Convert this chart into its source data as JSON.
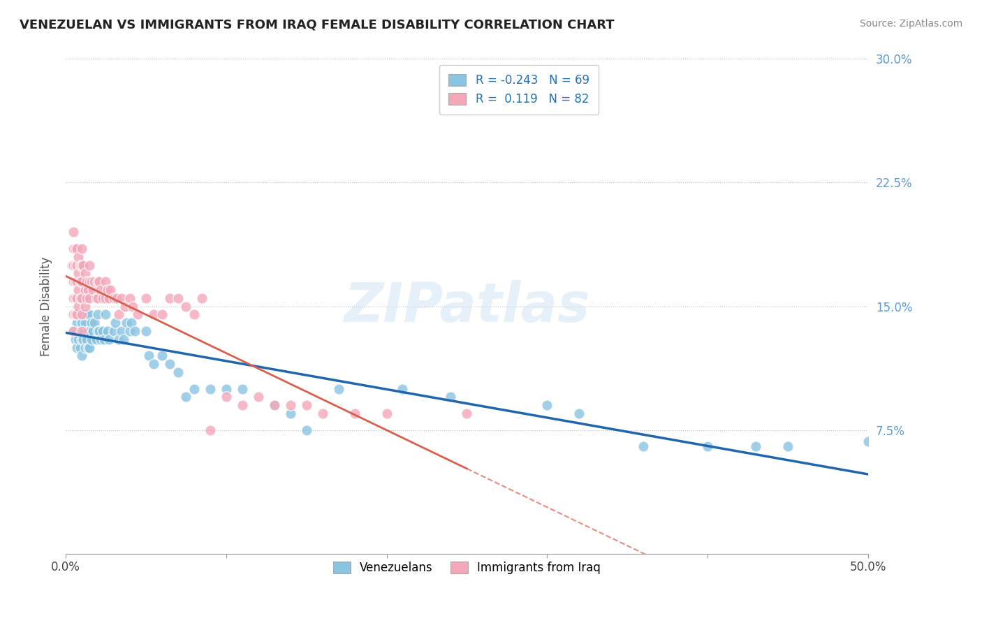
{
  "title": "VENEZUELAN VS IMMIGRANTS FROM IRAQ FEMALE DISABILITY CORRELATION CHART",
  "source": "Source: ZipAtlas.com",
  "ylabel": "Female Disability",
  "xmin": 0.0,
  "xmax": 0.5,
  "ymin": 0.0,
  "ymax": 0.3,
  "legend_labels": [
    "Venezuelans",
    "Immigrants from Iraq"
  ],
  "blue_R": -0.243,
  "blue_N": 69,
  "pink_R": 0.119,
  "pink_N": 82,
  "blue_color": "#89c4e1",
  "pink_color": "#f4a7b9",
  "blue_line_color": "#2166ac",
  "pink_line_color": "#d6604d",
  "watermark": "ZIPatlas",
  "blue_points_x": [
    0.005,
    0.006,
    0.007,
    0.007,
    0.008,
    0.008,
    0.009,
    0.009,
    0.01,
    0.01,
    0.01,
    0.01,
    0.011,
    0.012,
    0.012,
    0.013,
    0.013,
    0.014,
    0.014,
    0.015,
    0.015,
    0.015,
    0.016,
    0.016,
    0.017,
    0.018,
    0.019,
    0.02,
    0.02,
    0.021,
    0.022,
    0.023,
    0.024,
    0.025,
    0.026,
    0.027,
    0.03,
    0.031,
    0.033,
    0.035,
    0.036,
    0.038,
    0.04,
    0.041,
    0.043,
    0.05,
    0.052,
    0.055,
    0.06,
    0.065,
    0.07,
    0.075,
    0.08,
    0.09,
    0.1,
    0.11,
    0.13,
    0.14,
    0.15,
    0.17,
    0.21,
    0.24,
    0.3,
    0.32,
    0.36,
    0.4,
    0.43,
    0.45,
    0.5
  ],
  "blue_points_y": [
    0.135,
    0.13,
    0.14,
    0.125,
    0.145,
    0.13,
    0.135,
    0.125,
    0.145,
    0.14,
    0.13,
    0.12,
    0.13,
    0.14,
    0.125,
    0.145,
    0.13,
    0.135,
    0.125,
    0.145,
    0.135,
    0.125,
    0.14,
    0.13,
    0.135,
    0.14,
    0.13,
    0.145,
    0.135,
    0.135,
    0.13,
    0.135,
    0.13,
    0.145,
    0.135,
    0.13,
    0.135,
    0.14,
    0.13,
    0.135,
    0.13,
    0.14,
    0.135,
    0.14,
    0.135,
    0.135,
    0.12,
    0.115,
    0.12,
    0.115,
    0.11,
    0.095,
    0.1,
    0.1,
    0.1,
    0.1,
    0.09,
    0.085,
    0.075,
    0.1,
    0.1,
    0.095,
    0.09,
    0.085,
    0.065,
    0.065,
    0.065,
    0.065,
    0.068
  ],
  "pink_points_x": [
    0.004,
    0.005,
    0.005,
    0.005,
    0.005,
    0.005,
    0.005,
    0.005,
    0.006,
    0.006,
    0.006,
    0.006,
    0.006,
    0.007,
    0.007,
    0.007,
    0.007,
    0.007,
    0.008,
    0.008,
    0.008,
    0.008,
    0.009,
    0.009,
    0.009,
    0.01,
    0.01,
    0.01,
    0.01,
    0.01,
    0.01,
    0.011,
    0.012,
    0.012,
    0.012,
    0.013,
    0.013,
    0.014,
    0.015,
    0.015,
    0.015,
    0.016,
    0.017,
    0.018,
    0.019,
    0.02,
    0.02,
    0.021,
    0.022,
    0.023,
    0.025,
    0.025,
    0.026,
    0.027,
    0.028,
    0.03,
    0.032,
    0.033,
    0.035,
    0.037,
    0.04,
    0.042,
    0.045,
    0.05,
    0.055,
    0.06,
    0.065,
    0.07,
    0.075,
    0.08,
    0.085,
    0.09,
    0.1,
    0.11,
    0.12,
    0.13,
    0.14,
    0.15,
    0.16,
    0.18,
    0.2,
    0.25
  ],
  "pink_points_y": [
    0.175,
    0.195,
    0.185,
    0.175,
    0.165,
    0.155,
    0.145,
    0.135,
    0.185,
    0.175,
    0.165,
    0.155,
    0.145,
    0.185,
    0.175,
    0.165,
    0.155,
    0.145,
    0.18,
    0.17,
    0.16,
    0.15,
    0.175,
    0.165,
    0.155,
    0.185,
    0.175,
    0.165,
    0.155,
    0.145,
    0.135,
    0.175,
    0.17,
    0.16,
    0.15,
    0.165,
    0.155,
    0.16,
    0.175,
    0.165,
    0.155,
    0.165,
    0.16,
    0.165,
    0.155,
    0.165,
    0.155,
    0.165,
    0.16,
    0.155,
    0.165,
    0.155,
    0.16,
    0.155,
    0.16,
    0.155,
    0.155,
    0.145,
    0.155,
    0.15,
    0.155,
    0.15,
    0.145,
    0.155,
    0.145,
    0.145,
    0.155,
    0.155,
    0.15,
    0.145,
    0.155,
    0.075,
    0.095,
    0.09,
    0.095,
    0.09,
    0.09,
    0.09,
    0.085,
    0.085,
    0.085,
    0.085
  ]
}
